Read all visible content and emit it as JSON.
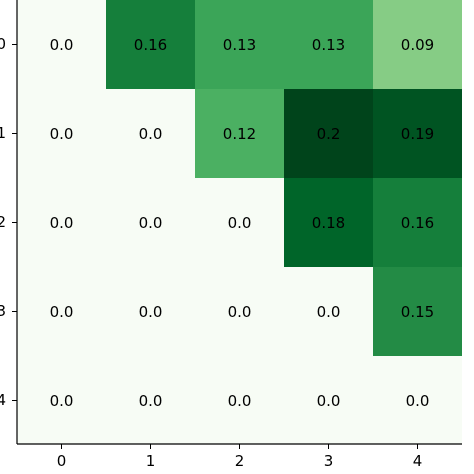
{
  "chart_data": {
    "type": "heatmap",
    "title": "",
    "xlabel": "",
    "ylabel": "",
    "x_ticks": [
      "0",
      "1",
      "2",
      "3",
      "4"
    ],
    "y_ticks": [
      "0",
      "1",
      "2",
      "3",
      "4"
    ],
    "values": [
      [
        0.0,
        0.16,
        0.13,
        0.13,
        0.09
      ],
      [
        0.0,
        0.0,
        0.12,
        0.2,
        0.19
      ],
      [
        0.0,
        0.0,
        0.0,
        0.18,
        0.16
      ],
      [
        0.0,
        0.0,
        0.0,
        0.0,
        0.15
      ],
      [
        0.0,
        0.0,
        0.0,
        0.0,
        0.0
      ]
    ],
    "labels": [
      [
        "0.0",
        "0.16",
        "0.13",
        "0.13",
        "0.09"
      ],
      [
        "0.0",
        "0.0",
        "0.12",
        "0.2",
        "0.19"
      ],
      [
        "0.0",
        "0.0",
        "0.0",
        "0.18",
        "0.16"
      ],
      [
        "0.0",
        "0.0",
        "0.0",
        "0.0",
        "0.15"
      ],
      [
        "0.0",
        "0.0",
        "0.0",
        "0.0",
        "0.0"
      ]
    ],
    "colormap": "Greens",
    "vmin": 0.0,
    "vmax": 0.2,
    "colors": {
      "low": "#f7fcf5",
      "high": "#00441b",
      "axis": "#000000"
    },
    "grid": false
  }
}
